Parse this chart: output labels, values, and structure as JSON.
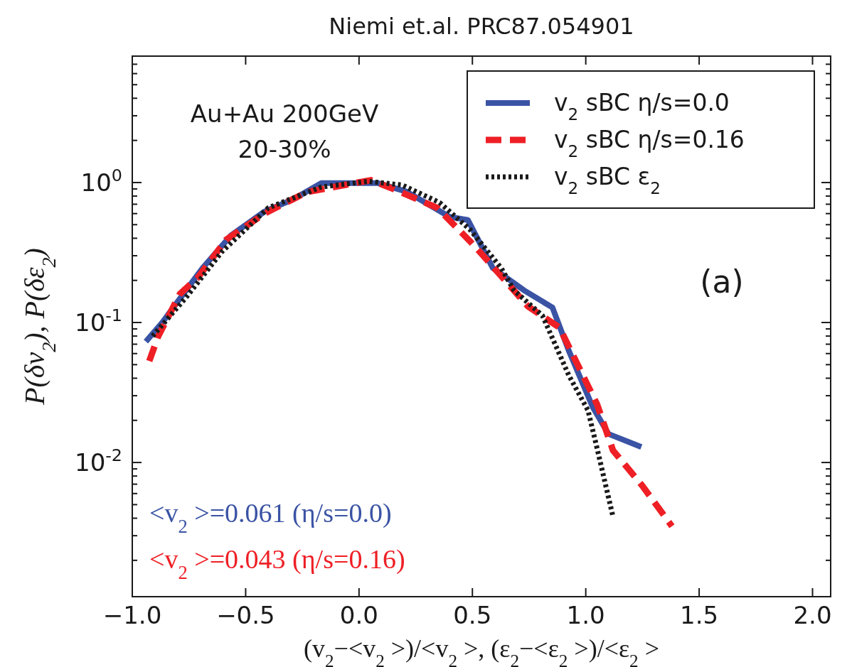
{
  "chart_data": {
    "type": "line",
    "title": "Niemi et.al. PRC87.054901",
    "xlabel": "(v$_{2}$−<v$_{2}$ >)/<v$_{2}$ >, (ε$_{2}$−<ε$_{2}$ >)/<ε$_{2}$ >",
    "ylabel": "P(δv$_{2}$), P(δε$_{2}$)",
    "log": "y",
    "legend": "top right",
    "xlim": [
      -1,
      2.08
    ],
    "ylim": [
      0.0011,
      8
    ],
    "xticks": [
      {
        "value": -1,
        "label": "−1.0"
      },
      {
        "value": -0.5,
        "label": "−0.5"
      },
      {
        "value": 0,
        "label": "0.0"
      },
      {
        "value": 0.5,
        "label": "0.5"
      },
      {
        "value": 1,
        "label": "1.0"
      },
      {
        "value": 1.5,
        "label": "1.5"
      },
      {
        "value": 2,
        "label": "2.0"
      }
    ],
    "yticks": [
      {
        "value": 0.002,
        "label": null
      },
      {
        "value": 0.003,
        "label": null
      },
      {
        "value": 0.004,
        "label": null
      },
      {
        "value": 0.005,
        "label": null
      },
      {
        "value": 0.006,
        "label": null
      },
      {
        "value": 0.007,
        "label": null
      },
      {
        "value": 0.008,
        "label": null
      },
      {
        "value": 0.009,
        "label": null
      },
      {
        "value": 0.01,
        "label": "10$^{-2}$"
      },
      {
        "value": 0.02,
        "label": null
      },
      {
        "value": 0.03,
        "label": null
      },
      {
        "value": 0.04,
        "label": null
      },
      {
        "value": 0.05,
        "label": null
      },
      {
        "value": 0.06,
        "label": null
      },
      {
        "value": 0.07,
        "label": null
      },
      {
        "value": 0.08,
        "label": null
      },
      {
        "value": 0.09,
        "label": null
      },
      {
        "value": 0.1,
        "label": "10$^{-1}$"
      },
      {
        "value": 0.2,
        "label": null
      },
      {
        "value": 0.3,
        "label": null
      },
      {
        "value": 0.4,
        "label": null
      },
      {
        "value": 0.5,
        "label": null
      },
      {
        "value": 0.6,
        "label": null
      },
      {
        "value": 0.7,
        "label": null
      },
      {
        "value": 0.8,
        "label": null
      },
      {
        "value": 0.9,
        "label": null
      },
      {
        "value": 1,
        "label": "10$^{0}$"
      },
      {
        "value": 2,
        "label": null
      },
      {
        "value": 3,
        "label": null
      },
      {
        "value": 4,
        "label": null
      },
      {
        "value": 5,
        "label": null
      },
      {
        "value": 6,
        "label": null
      },
      {
        "value": 7,
        "label": null
      }
    ],
    "annotations": [
      "Au+Au 200GeV",
      "20-30%",
      "(a)",
      "<v$_{2}$ >=0.061 (η/s=0.0)",
      "<v$_{2}$ >=0.043 (η/s=0.16)"
    ],
    "series": [
      {
        "name": "v$_{2}$ sBC η/s=0.0",
        "color": "#3a53a4",
        "line_style": "solid",
        "x": [
          -0.94,
          -0.868,
          -0.69,
          -0.564,
          -0.417,
          -0.29,
          -0.166,
          0.085,
          0.21,
          0.398,
          0.48,
          0.59,
          0.727,
          0.853,
          0.925,
          1.03,
          1.1,
          1.245
        ],
        "values": [
          0.073,
          0.1,
          0.245,
          0.42,
          0.62,
          0.76,
          0.99,
          0.99,
          0.86,
          0.57,
          0.54,
          0.245,
          0.17,
          0.128,
          0.063,
          0.025,
          0.016,
          0.0129
        ]
      },
      {
        "name": "v$_{2}$ sBC η/s=0.16",
        "color": "#ee1f25",
        "line_style": "dashed",
        "x": [
          -0.925,
          -0.887,
          -0.79,
          -0.71,
          -0.586,
          -0.417,
          -0.23,
          -0.02,
          0.053,
          0.166,
          0.345,
          0.49,
          0.54,
          0.746,
          0.884,
          1.05,
          1.12,
          1.25,
          1.38
        ],
        "values": [
          0.053,
          0.079,
          0.16,
          0.21,
          0.39,
          0.6,
          0.855,
          0.99,
          1.04,
          0.88,
          0.66,
          0.38,
          0.31,
          0.13,
          0.092,
          0.026,
          0.0122,
          0.0068,
          0.0035
        ]
      },
      {
        "name": "v$_{2}$ sBC ε$_{2}$",
        "color": "#1a1a1a",
        "line_style": "dotted",
        "x": [
          -0.91,
          -0.76,
          -0.605,
          -0.4,
          -0.166,
          0.04,
          0.19,
          0.355,
          0.49,
          0.627,
          0.683,
          0.809,
          0.925,
          1.01,
          1.05,
          1.12
        ],
        "values": [
          0.08,
          0.153,
          0.32,
          0.66,
          0.93,
          1.02,
          0.96,
          0.72,
          0.46,
          0.245,
          0.17,
          0.112,
          0.042,
          0.0235,
          0.0126,
          0.0041
        ]
      }
    ]
  }
}
